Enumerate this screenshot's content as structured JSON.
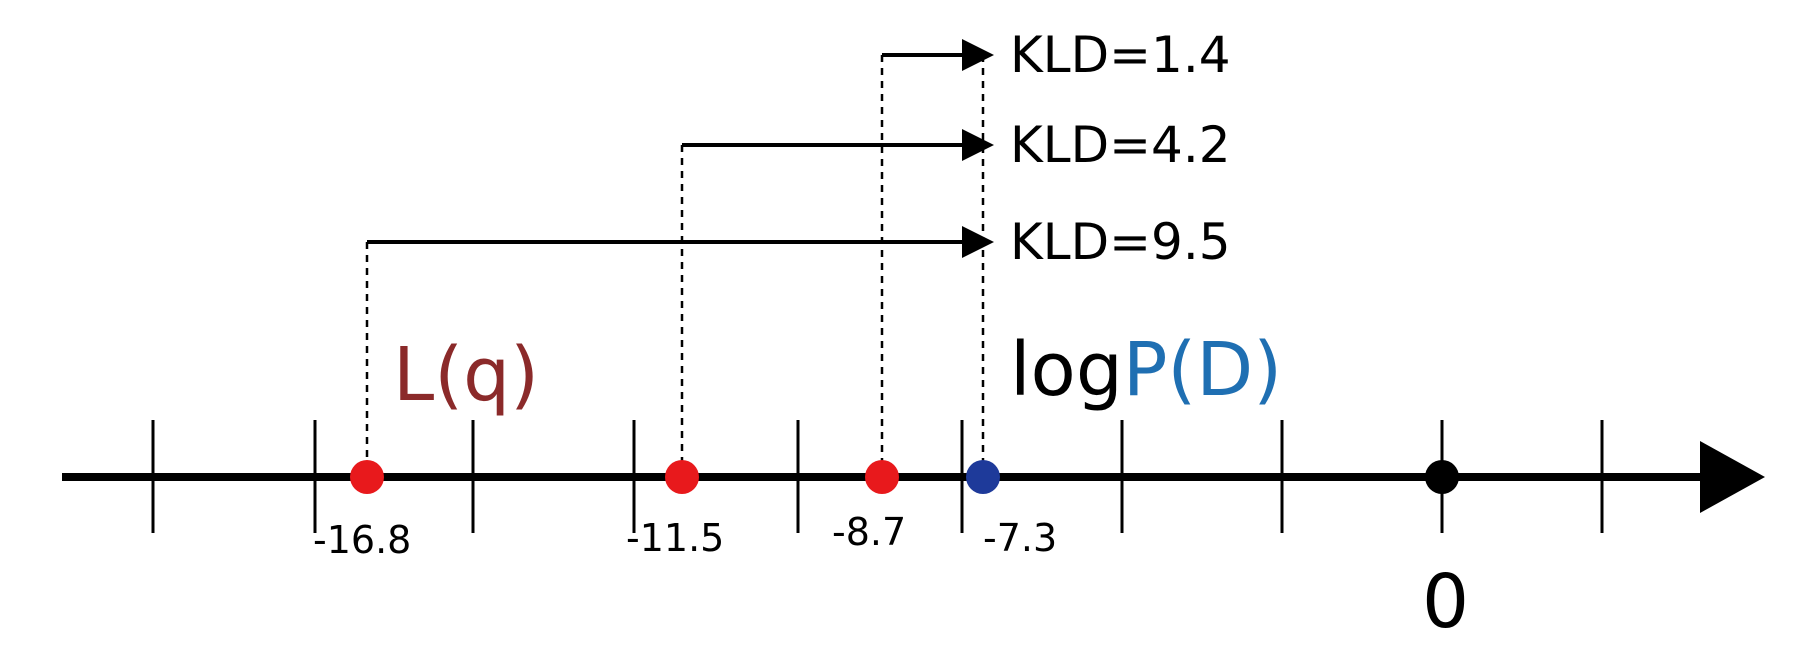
{
  "diagram": {
    "kld_labels": [
      "KLD=1.4",
      "KLD=4.2",
      "KLD=9.5"
    ],
    "lq_label": "L(q)",
    "logp_prefix": "log",
    "logp_suffix": "P(D)",
    "tick_values": [
      "-16.8",
      "-11.5",
      "-8.7",
      "-7.3"
    ],
    "zero_label": "0",
    "colors": {
      "axis": "#000000",
      "red_point": "#e8191c",
      "blue_point": "#1e3a9a",
      "lq_text": "#8b2a2a",
      "logp_blue_text": "#1f6fb2"
    }
  }
}
